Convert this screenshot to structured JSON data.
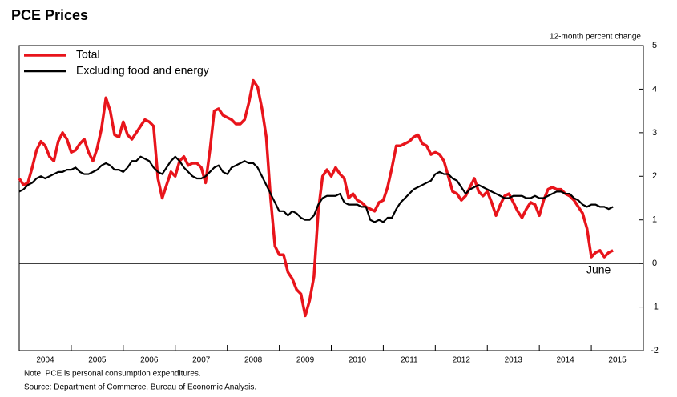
{
  "chart_data": {
    "type": "line",
    "title": "PCE Prices",
    "y_axis_label": "12-month percent change",
    "annotation": "June",
    "note": "Note:  PCE is personal consumption expenditures.",
    "source": "Source:  Department of Commerce, Bureau of Economic Analysis.",
    "xlim": [
      2004,
      2016
    ],
    "xticks": [
      2004,
      2005,
      2006,
      2007,
      2008,
      2009,
      2010,
      2011,
      2012,
      2013,
      2014,
      2015
    ],
    "ylim": [
      -2,
      5
    ],
    "yticks": [
      -2,
      -1,
      0,
      1,
      2,
      3,
      4,
      5
    ],
    "x": [
      2004,
      2004.083,
      2004.167,
      2004.25,
      2004.333,
      2004.417,
      2004.5,
      2004.583,
      2004.667,
      2004.75,
      2004.833,
      2004.917,
      2005,
      2005.083,
      2005.167,
      2005.25,
      2005.333,
      2005.417,
      2005.5,
      2005.583,
      2005.667,
      2005.75,
      2005.833,
      2005.917,
      2006,
      2006.083,
      2006.167,
      2006.25,
      2006.333,
      2006.417,
      2006.5,
      2006.583,
      2006.667,
      2006.75,
      2006.833,
      2006.917,
      2007,
      2007.083,
      2007.167,
      2007.25,
      2007.333,
      2007.417,
      2007.5,
      2007.583,
      2007.667,
      2007.75,
      2007.833,
      2007.917,
      2008,
      2008.083,
      2008.167,
      2008.25,
      2008.333,
      2008.417,
      2008.5,
      2008.583,
      2008.667,
      2008.75,
      2008.833,
      2008.917,
      2009,
      2009.083,
      2009.167,
      2009.25,
      2009.333,
      2009.417,
      2009.5,
      2009.583,
      2009.667,
      2009.75,
      2009.833,
      2009.917,
      2010,
      2010.083,
      2010.167,
      2010.25,
      2010.333,
      2010.417,
      2010.5,
      2010.583,
      2010.667,
      2010.75,
      2010.833,
      2010.917,
      2011,
      2011.083,
      2011.167,
      2011.25,
      2011.333,
      2011.417,
      2011.5,
      2011.583,
      2011.667,
      2011.75,
      2011.833,
      2011.917,
      2012,
      2012.083,
      2012.167,
      2012.25,
      2012.333,
      2012.417,
      2012.5,
      2012.583,
      2012.667,
      2012.75,
      2012.833,
      2012.917,
      2013,
      2013.083,
      2013.167,
      2013.25,
      2013.333,
      2013.417,
      2013.5,
      2013.583,
      2013.667,
      2013.75,
      2013.833,
      2013.917,
      2014,
      2014.083,
      2014.167,
      2014.25,
      2014.333,
      2014.417,
      2014.5,
      2014.583,
      2014.667,
      2014.75,
      2014.833,
      2014.917,
      2015,
      2015.083,
      2015.167,
      2015.25,
      2015.333,
      2015.417
    ],
    "series": [
      {
        "name": "Total",
        "color": "#e8141b",
        "values": [
          1.95,
          1.8,
          1.85,
          2.2,
          2.6,
          2.8,
          2.7,
          2.45,
          2.35,
          2.8,
          3.0,
          2.85,
          2.55,
          2.6,
          2.75,
          2.85,
          2.55,
          2.35,
          2.65,
          3.1,
          3.8,
          3.5,
          2.95,
          2.9,
          3.25,
          2.95,
          2.85,
          3.0,
          3.15,
          3.3,
          3.25,
          3.15,
          1.95,
          1.5,
          1.8,
          2.1,
          2.0,
          2.35,
          2.45,
          2.25,
          2.3,
          2.3,
          2.2,
          1.85,
          2.6,
          3.5,
          3.55,
          3.4,
          3.35,
          3.3,
          3.2,
          3.2,
          3.3,
          3.7,
          4.2,
          4.05,
          3.55,
          2.9,
          1.5,
          0.4,
          0.2,
          0.2,
          -0.2,
          -0.35,
          -0.6,
          -0.7,
          -1.2,
          -0.85,
          -0.3,
          1.2,
          2.0,
          2.15,
          2.0,
          2.2,
          2.05,
          1.95,
          1.5,
          1.6,
          1.45,
          1.4,
          1.3,
          1.25,
          1.2,
          1.4,
          1.45,
          1.75,
          2.2,
          2.7,
          2.7,
          2.75,
          2.8,
          2.9,
          2.95,
          2.75,
          2.7,
          2.5,
          2.55,
          2.5,
          2.35,
          2.0,
          1.65,
          1.6,
          1.45,
          1.55,
          1.75,
          1.95,
          1.65,
          1.55,
          1.65,
          1.4,
          1.1,
          1.35,
          1.55,
          1.6,
          1.4,
          1.2,
          1.05,
          1.25,
          1.4,
          1.35,
          1.1,
          1.45,
          1.7,
          1.75,
          1.7,
          1.7,
          1.6,
          1.55,
          1.45,
          1.3,
          1.15,
          0.8,
          0.15,
          0.25,
          0.3,
          0.15,
          0.25,
          0.3
        ]
      },
      {
        "name": "Excluding food and energy",
        "color": "#000000",
        "values": [
          1.65,
          1.7,
          1.8,
          1.85,
          1.95,
          2.0,
          1.95,
          2.0,
          2.05,
          2.1,
          2.1,
          2.15,
          2.15,
          2.2,
          2.1,
          2.05,
          2.05,
          2.1,
          2.15,
          2.25,
          2.3,
          2.25,
          2.15,
          2.15,
          2.1,
          2.2,
          2.35,
          2.35,
          2.45,
          2.4,
          2.35,
          2.2,
          2.1,
          2.05,
          2.2,
          2.35,
          2.45,
          2.35,
          2.2,
          2.1,
          2.0,
          1.95,
          1.95,
          2.0,
          2.1,
          2.2,
          2.25,
          2.1,
          2.05,
          2.2,
          2.25,
          2.3,
          2.35,
          2.3,
          2.3,
          2.2,
          2.0,
          1.8,
          1.6,
          1.4,
          1.2,
          1.2,
          1.1,
          1.2,
          1.15,
          1.05,
          1.0,
          1.0,
          1.1,
          1.35,
          1.5,
          1.55,
          1.55,
          1.55,
          1.6,
          1.4,
          1.35,
          1.35,
          1.35,
          1.3,
          1.3,
          1.0,
          0.95,
          1.0,
          0.95,
          1.05,
          1.05,
          1.25,
          1.4,
          1.5,
          1.6,
          1.7,
          1.75,
          1.8,
          1.85,
          1.9,
          2.05,
          2.1,
          2.05,
          2.05,
          1.95,
          1.9,
          1.75,
          1.6,
          1.7,
          1.75,
          1.8,
          1.75,
          1.7,
          1.65,
          1.6,
          1.55,
          1.5,
          1.5,
          1.55,
          1.55,
          1.55,
          1.5,
          1.5,
          1.55,
          1.5,
          1.5,
          1.55,
          1.6,
          1.65,
          1.65,
          1.6,
          1.6,
          1.5,
          1.45,
          1.35,
          1.3,
          1.35,
          1.35,
          1.3,
          1.3,
          1.25,
          1.3
        ]
      }
    ]
  }
}
